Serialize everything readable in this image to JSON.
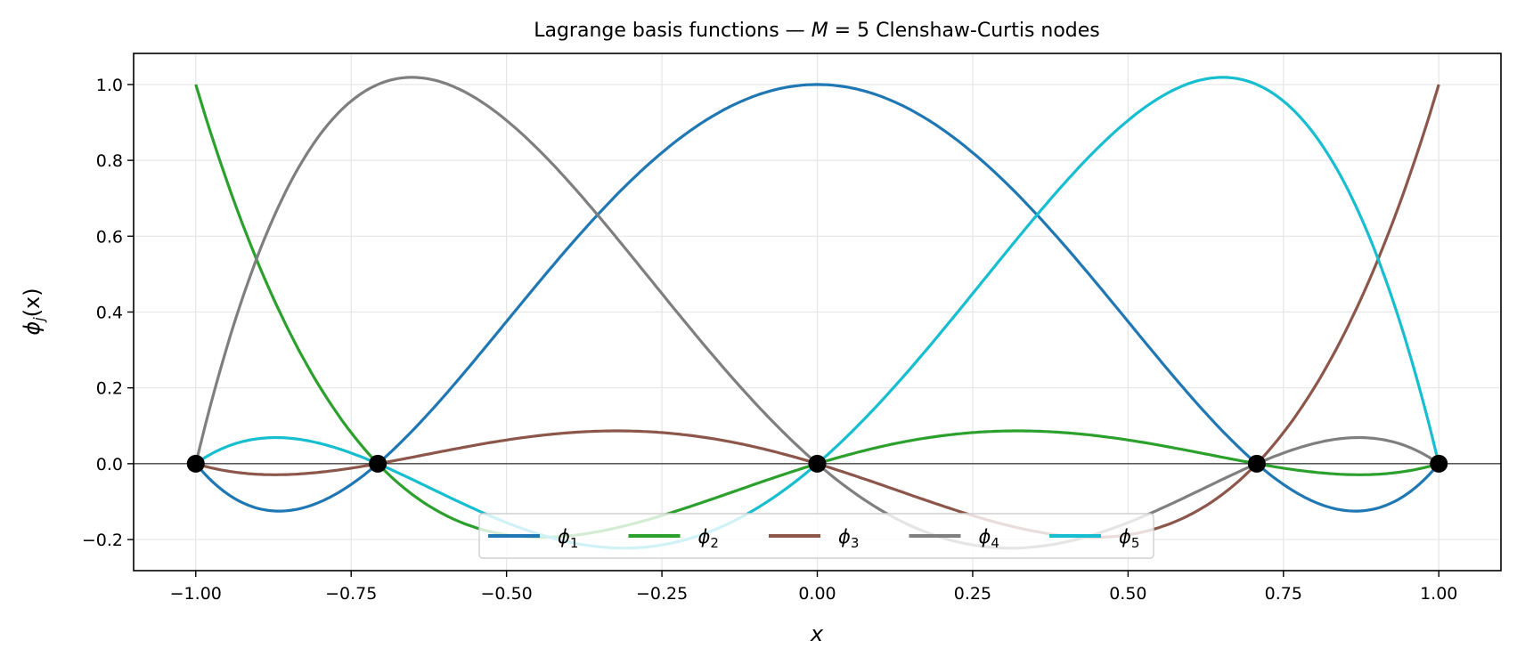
{
  "chart_data": {
    "type": "line",
    "title_prefix": "Lagrange basis functions — ",
    "title_var": "M",
    "title_eq": " = 5 ",
    "title_suffix": "Clenshaw-Curtis nodes",
    "xlabel": "x",
    "ylabel_main": "ϕ",
    "ylabel_sub": "j",
    "ylabel_arg": "(x)",
    "xlim": [
      -1.1,
      1.1
    ],
    "ylim": [
      -0.282,
      1.082
    ],
    "xticks": [
      -1.0,
      -0.75,
      -0.5,
      -0.25,
      0.0,
      0.25,
      0.5,
      0.75,
      1.0
    ],
    "xtick_labels": [
      "−1.00",
      "−0.75",
      "−0.50",
      "−0.25",
      "0.00",
      "0.25",
      "0.50",
      "0.75",
      "1.00"
    ],
    "yticks": [
      -0.2,
      0.0,
      0.2,
      0.4,
      0.6,
      0.8,
      1.0
    ],
    "ytick_labels": [
      "−0.2",
      "0.0",
      "0.2",
      "0.4",
      "0.6",
      "0.8",
      "1.0"
    ],
    "grid": true,
    "legend_placement": "lower-center",
    "legend_columns": 5,
    "nodes": [
      0.0,
      -1.0,
      1.0,
      -0.7071,
      0.7071
    ],
    "node_color": "#000000",
    "series": [
      {
        "name": "ϕ",
        "sub": "1",
        "node_index": 0,
        "color": "#1f77b4"
      },
      {
        "name": "ϕ",
        "sub": "2",
        "node_index": 1,
        "color": "#2ca02c"
      },
      {
        "name": "ϕ",
        "sub": "3",
        "node_index": 2,
        "color": "#8c564b"
      },
      {
        "name": "ϕ",
        "sub": "4",
        "node_index": 3,
        "color": "#7f7f7f"
      },
      {
        "name": "ϕ",
        "sub": "5",
        "node_index": 4,
        "color": "#17becf"
      }
    ]
  }
}
